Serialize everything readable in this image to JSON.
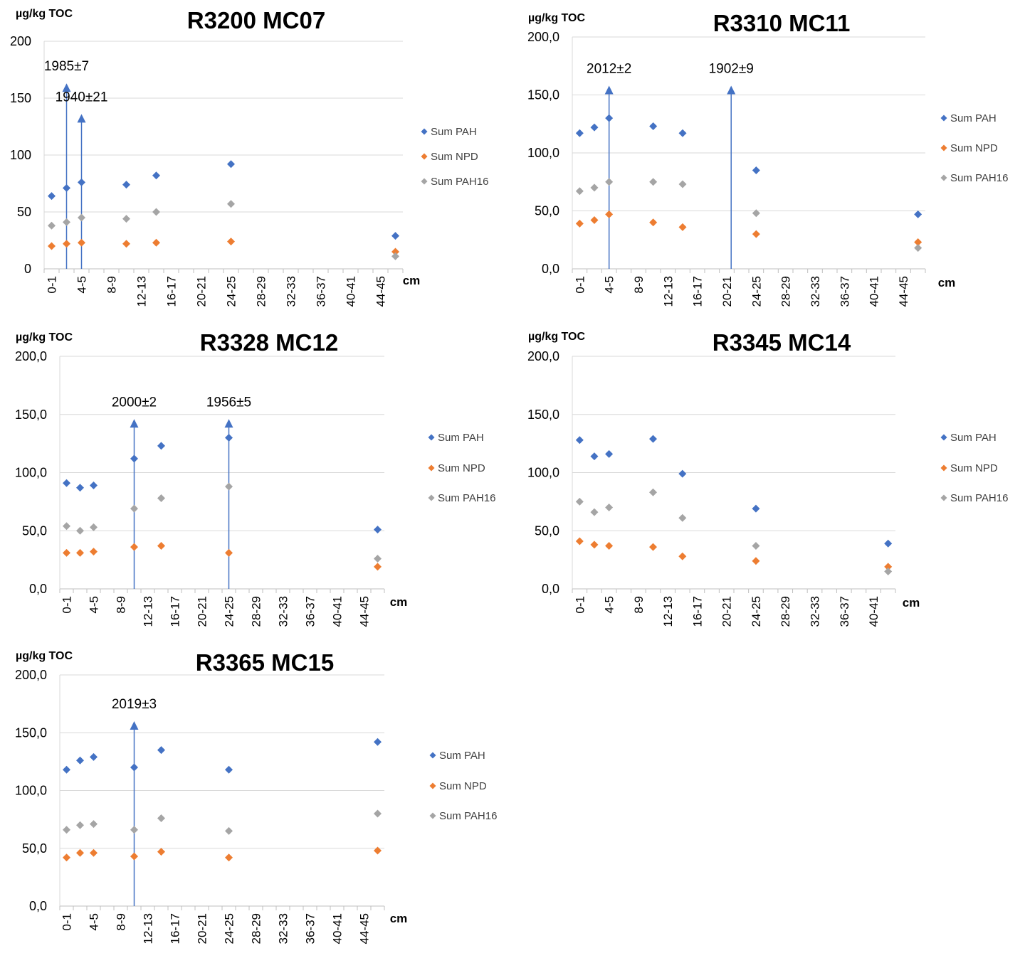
{
  "colors": {
    "sum_pah": "#4472c4",
    "sum_npd": "#ed7d31",
    "sum_pah16": "#a5a5a5",
    "grid": "#d9d9d9",
    "axis_text": "#000000",
    "arrow": "#4472c4"
  },
  "chart_data": [
    {
      "type": "scatter",
      "title": "R3200 MC07",
      "ylabel": "µg/kg TOC",
      "xlabel": "cm",
      "ylim": [
        0,
        200
      ],
      "yticks": [
        "0",
        "50",
        "100",
        "150",
        "200"
      ],
      "categories": [
        "0-1",
        "2-3",
        "4-5",
        "6-7",
        "8-9",
        "10-11",
        "12-13",
        "14-15",
        "16-17",
        "18-19",
        "20-21",
        "22-23",
        "24-25",
        "26-27",
        "28-29",
        "30-31",
        "32-33",
        "34-35",
        "36-37",
        "38-39",
        "40-41",
        "42-43",
        "44-45",
        "46-47"
      ],
      "visible_tick_labels": [
        "0-1",
        "4-5",
        "8-9",
        "12-13",
        "16-17",
        "20-21",
        "24-25",
        "28-29",
        "32-33",
        "36-37",
        "40-41",
        "44-45"
      ],
      "legend_position": "right",
      "series": [
        {
          "name": "Sum PAH",
          "color_key": "sum_pah",
          "points": [
            [
              0,
              64
            ],
            [
              1,
              71
            ],
            [
              2,
              76
            ],
            [
              5,
              74
            ],
            [
              7,
              82
            ],
            [
              12,
              92
            ],
            [
              23,
              29
            ]
          ]
        },
        {
          "name": "Sum NPD",
          "color_key": "sum_npd",
          "points": [
            [
              0,
              20
            ],
            [
              1,
              22
            ],
            [
              2,
              23
            ],
            [
              5,
              22
            ],
            [
              7,
              23
            ],
            [
              12,
              24
            ],
            [
              23,
              15
            ]
          ]
        },
        {
          "name": "Sum PAH16",
          "color_key": "sum_pah16",
          "points": [
            [
              0,
              38
            ],
            [
              1,
              41
            ],
            [
              2,
              45
            ],
            [
              5,
              44
            ],
            [
              7,
              50
            ],
            [
              12,
              57
            ],
            [
              23,
              11
            ]
          ]
        }
      ],
      "annotations": [
        {
          "text": "1985±7",
          "x": 1.0,
          "y_top": 163
        },
        {
          "text": "1940±21",
          "x": 2.0,
          "y_top": 136
        }
      ]
    },
    {
      "type": "scatter",
      "title": "R3310 MC11",
      "ylabel": "µg/kg TOC",
      "xlabel": "cm",
      "ylim": [
        0,
        200
      ],
      "yticks": [
        "0,0",
        "50,0",
        "100,0",
        "150,0",
        "200,0"
      ],
      "categories": [
        "0-1",
        "2-3",
        "4-5",
        "6-7",
        "8-9",
        "10-11",
        "12-13",
        "14-15",
        "16-17",
        "18-19",
        "20-21",
        "22-23",
        "24-25",
        "26-27",
        "28-29",
        "30-31",
        "32-33",
        "34-35",
        "36-37",
        "38-39",
        "40-41",
        "42-43",
        "44-45",
        "46-47"
      ],
      "visible_tick_labels": [
        "0-1",
        "4-5",
        "8-9",
        "12-13",
        "16-17",
        "20-21",
        "24-25",
        "28-29",
        "32-33",
        "36-37",
        "40-41",
        "44-45"
      ],
      "legend_position": "right",
      "series": [
        {
          "name": "Sum PAH",
          "color_key": "sum_pah",
          "points": [
            [
              0,
              117
            ],
            [
              1,
              122
            ],
            [
              2,
              130
            ],
            [
              5,
              123
            ],
            [
              7,
              117
            ],
            [
              12,
              85
            ],
            [
              23,
              47
            ]
          ]
        },
        {
          "name": "Sum NPD",
          "color_key": "sum_npd",
          "points": [
            [
              0,
              39
            ],
            [
              1,
              42
            ],
            [
              2,
              47
            ],
            [
              5,
              40
            ],
            [
              7,
              36
            ],
            [
              12,
              30
            ],
            [
              23,
              23
            ]
          ]
        },
        {
          "name": "Sum PAH16",
          "color_key": "sum_pah16",
          "points": [
            [
              0,
              67
            ],
            [
              1,
              70
            ],
            [
              2,
              75
            ],
            [
              5,
              75
            ],
            [
              7,
              73
            ],
            [
              12,
              48
            ],
            [
              23,
              18
            ]
          ]
        }
      ],
      "annotations": [
        {
          "text": "2012±2",
          "x": 2.0,
          "y_top": 158
        },
        {
          "text": "1902±9",
          "x": 10.3,
          "y_top": 158
        }
      ]
    },
    {
      "type": "scatter",
      "title": "R3328 MC12",
      "ylabel": "µg/kg TOC",
      "xlabel": "cm",
      "ylim": [
        0,
        200
      ],
      "yticks": [
        "0,0",
        "50,0",
        "100,0",
        "150,0",
        "200,0"
      ],
      "categories": [
        "0-1",
        "2-3",
        "4-5",
        "6-7",
        "8-9",
        "10-11",
        "12-13",
        "14-15",
        "16-17",
        "18-19",
        "20-21",
        "22-23",
        "24-25",
        "26-27",
        "28-29",
        "30-31",
        "32-33",
        "34-35",
        "36-37",
        "38-39",
        "40-41",
        "42-43",
        "44-45",
        "46-47"
      ],
      "visible_tick_labels": [
        "0-1",
        "4-5",
        "8-9",
        "12-13",
        "16-17",
        "20-21",
        "24-25",
        "28-29",
        "32-33",
        "36-37",
        "40-41",
        "44-45"
      ],
      "legend_position": "right",
      "series": [
        {
          "name": "Sum PAH",
          "color_key": "sum_pah",
          "points": [
            [
              0,
              91
            ],
            [
              1,
              87
            ],
            [
              2,
              89
            ],
            [
              5,
              112
            ],
            [
              7,
              123
            ],
            [
              12,
              130
            ],
            [
              23,
              51
            ]
          ]
        },
        {
          "name": "Sum NPD",
          "color_key": "sum_npd",
          "points": [
            [
              0,
              31
            ],
            [
              1,
              31
            ],
            [
              2,
              32
            ],
            [
              5,
              36
            ],
            [
              7,
              37
            ],
            [
              12,
              31
            ],
            [
              23,
              19
            ]
          ]
        },
        {
          "name": "Sum PAH16",
          "color_key": "sum_pah16",
          "points": [
            [
              0,
              54
            ],
            [
              1,
              50
            ],
            [
              2,
              53
            ],
            [
              5,
              69
            ],
            [
              7,
              78
            ],
            [
              12,
              88
            ],
            [
              23,
              26
            ]
          ]
        }
      ],
      "annotations": [
        {
          "text": "2000±2",
          "x": 5.0,
          "y_top": 146
        },
        {
          "text": "1956±5",
          "x": 12.0,
          "y_top": 146
        }
      ]
    },
    {
      "type": "scatter",
      "title": "R3345 MC14",
      "ylabel": "µg/kg TOC",
      "xlabel": "cm",
      "ylim": [
        0,
        200
      ],
      "yticks": [
        "0,0",
        "50,0",
        "100,0",
        "150,0",
        "200,0"
      ],
      "categories": [
        "0-1",
        "2-3",
        "4-5",
        "6-7",
        "8-9",
        "10-11",
        "12-13",
        "14-15",
        "16-17",
        "18-19",
        "20-21",
        "22-23",
        "24-25",
        "26-27",
        "28-29",
        "30-31",
        "32-33",
        "34-35",
        "36-37",
        "38-39",
        "40-41",
        "42-43"
      ],
      "visible_tick_labels": [
        "0-1",
        "4-5",
        "8-9",
        "12-13",
        "16-17",
        "20-21",
        "24-25",
        "28-29",
        "32-33",
        "36-37",
        "40-41"
      ],
      "legend_position": "right",
      "series": [
        {
          "name": "Sum PAH",
          "color_key": "sum_pah",
          "points": [
            [
              0,
              128
            ],
            [
              1,
              114
            ],
            [
              2,
              116
            ],
            [
              5,
              129
            ],
            [
              7,
              99
            ],
            [
              12,
              69
            ],
            [
              21,
              39
            ]
          ]
        },
        {
          "name": "Sum NPD",
          "color_key": "sum_npd",
          "points": [
            [
              0,
              41
            ],
            [
              1,
              38
            ],
            [
              2,
              37
            ],
            [
              5,
              36
            ],
            [
              7,
              28
            ],
            [
              12,
              24
            ],
            [
              21,
              19
            ]
          ]
        },
        {
          "name": "Sum PAH16",
          "color_key": "sum_pah16",
          "points": [
            [
              0,
              75
            ],
            [
              1,
              66
            ],
            [
              2,
              70
            ],
            [
              5,
              83
            ],
            [
              7,
              61
            ],
            [
              12,
              37
            ],
            [
              21,
              15
            ]
          ]
        }
      ],
      "annotations": []
    },
    {
      "type": "scatter",
      "title": "R3365 MC15",
      "ylabel": "µg/kg TOC",
      "xlabel": "cm",
      "ylim": [
        0,
        200
      ],
      "yticks": [
        "0,0",
        "50,0",
        "100,0",
        "150,0",
        "200,0"
      ],
      "categories": [
        "0-1",
        "2-3",
        "4-5",
        "6-7",
        "8-9",
        "10-11",
        "12-13",
        "14-15",
        "16-17",
        "18-19",
        "20-21",
        "22-23",
        "24-25",
        "26-27",
        "28-29",
        "30-31",
        "32-33",
        "34-35",
        "36-37",
        "38-39",
        "40-41",
        "42-43",
        "44-45",
        "46-47"
      ],
      "visible_tick_labels": [
        "0-1",
        "4-5",
        "8-9",
        "12-13",
        "16-17",
        "20-21",
        "24-25",
        "28-29",
        "32-33",
        "36-37",
        "40-41",
        "44-45"
      ],
      "legend_position": "right",
      "series": [
        {
          "name": "Sum PAH",
          "color_key": "sum_pah",
          "points": [
            [
              0,
              118
            ],
            [
              1,
              126
            ],
            [
              2,
              129
            ],
            [
              5,
              120
            ],
            [
              7,
              135
            ],
            [
              12,
              118
            ],
            [
              23,
              142
            ]
          ]
        },
        {
          "name": "Sum NPD",
          "color_key": "sum_npd",
          "points": [
            [
              0,
              42
            ],
            [
              1,
              46
            ],
            [
              2,
              46
            ],
            [
              5,
              43
            ],
            [
              7,
              47
            ],
            [
              12,
              42
            ],
            [
              23,
              48
            ]
          ]
        },
        {
          "name": "Sum PAH16",
          "color_key": "sum_pah16",
          "points": [
            [
              0,
              66
            ],
            [
              1,
              70
            ],
            [
              2,
              71
            ],
            [
              5,
              66
            ],
            [
              7,
              76
            ],
            [
              12,
              65
            ],
            [
              23,
              80
            ]
          ]
        }
      ],
      "annotations": [
        {
          "text": "2019±3",
          "x": 5.0,
          "y_top": 160
        }
      ]
    }
  ]
}
